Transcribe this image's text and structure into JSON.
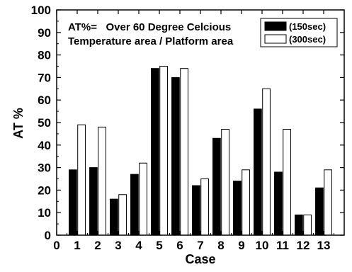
{
  "chart_data": {
    "type": "bar",
    "x": [
      1,
      2,
      3,
      4,
      5,
      6,
      7,
      8,
      9,
      10,
      11,
      12,
      13
    ],
    "xlabel": "Case",
    "ylabel": "AT %",
    "xlim": [
      0,
      14
    ],
    "ylim": [
      0,
      100
    ],
    "x_ticks": [
      "0",
      "1",
      "2",
      "3",
      "4",
      "5",
      "6",
      "7",
      "8",
      "9",
      "10",
      "11",
      "12",
      "13"
    ],
    "y_ticks": [
      "0",
      "10",
      "20",
      "30",
      "40",
      "50",
      "60",
      "70",
      "80",
      "90",
      "100"
    ],
    "annotation": [
      "AT%=   Over 60 Degree Celcious",
      "Temperature area / Platform area"
    ],
    "legend_position": "top-right",
    "series": [
      {
        "name": "(150sec)",
        "color": "#000000",
        "values": [
          29,
          30,
          16,
          27,
          74,
          70,
          22,
          43,
          24,
          56,
          28,
          9,
          21
        ]
      },
      {
        "name": "(300sec)",
        "color": "#ffffff",
        "values": [
          49,
          48,
          18,
          32,
          75,
          74,
          25,
          47,
          29,
          65,
          47,
          9,
          29
        ]
      }
    ]
  }
}
